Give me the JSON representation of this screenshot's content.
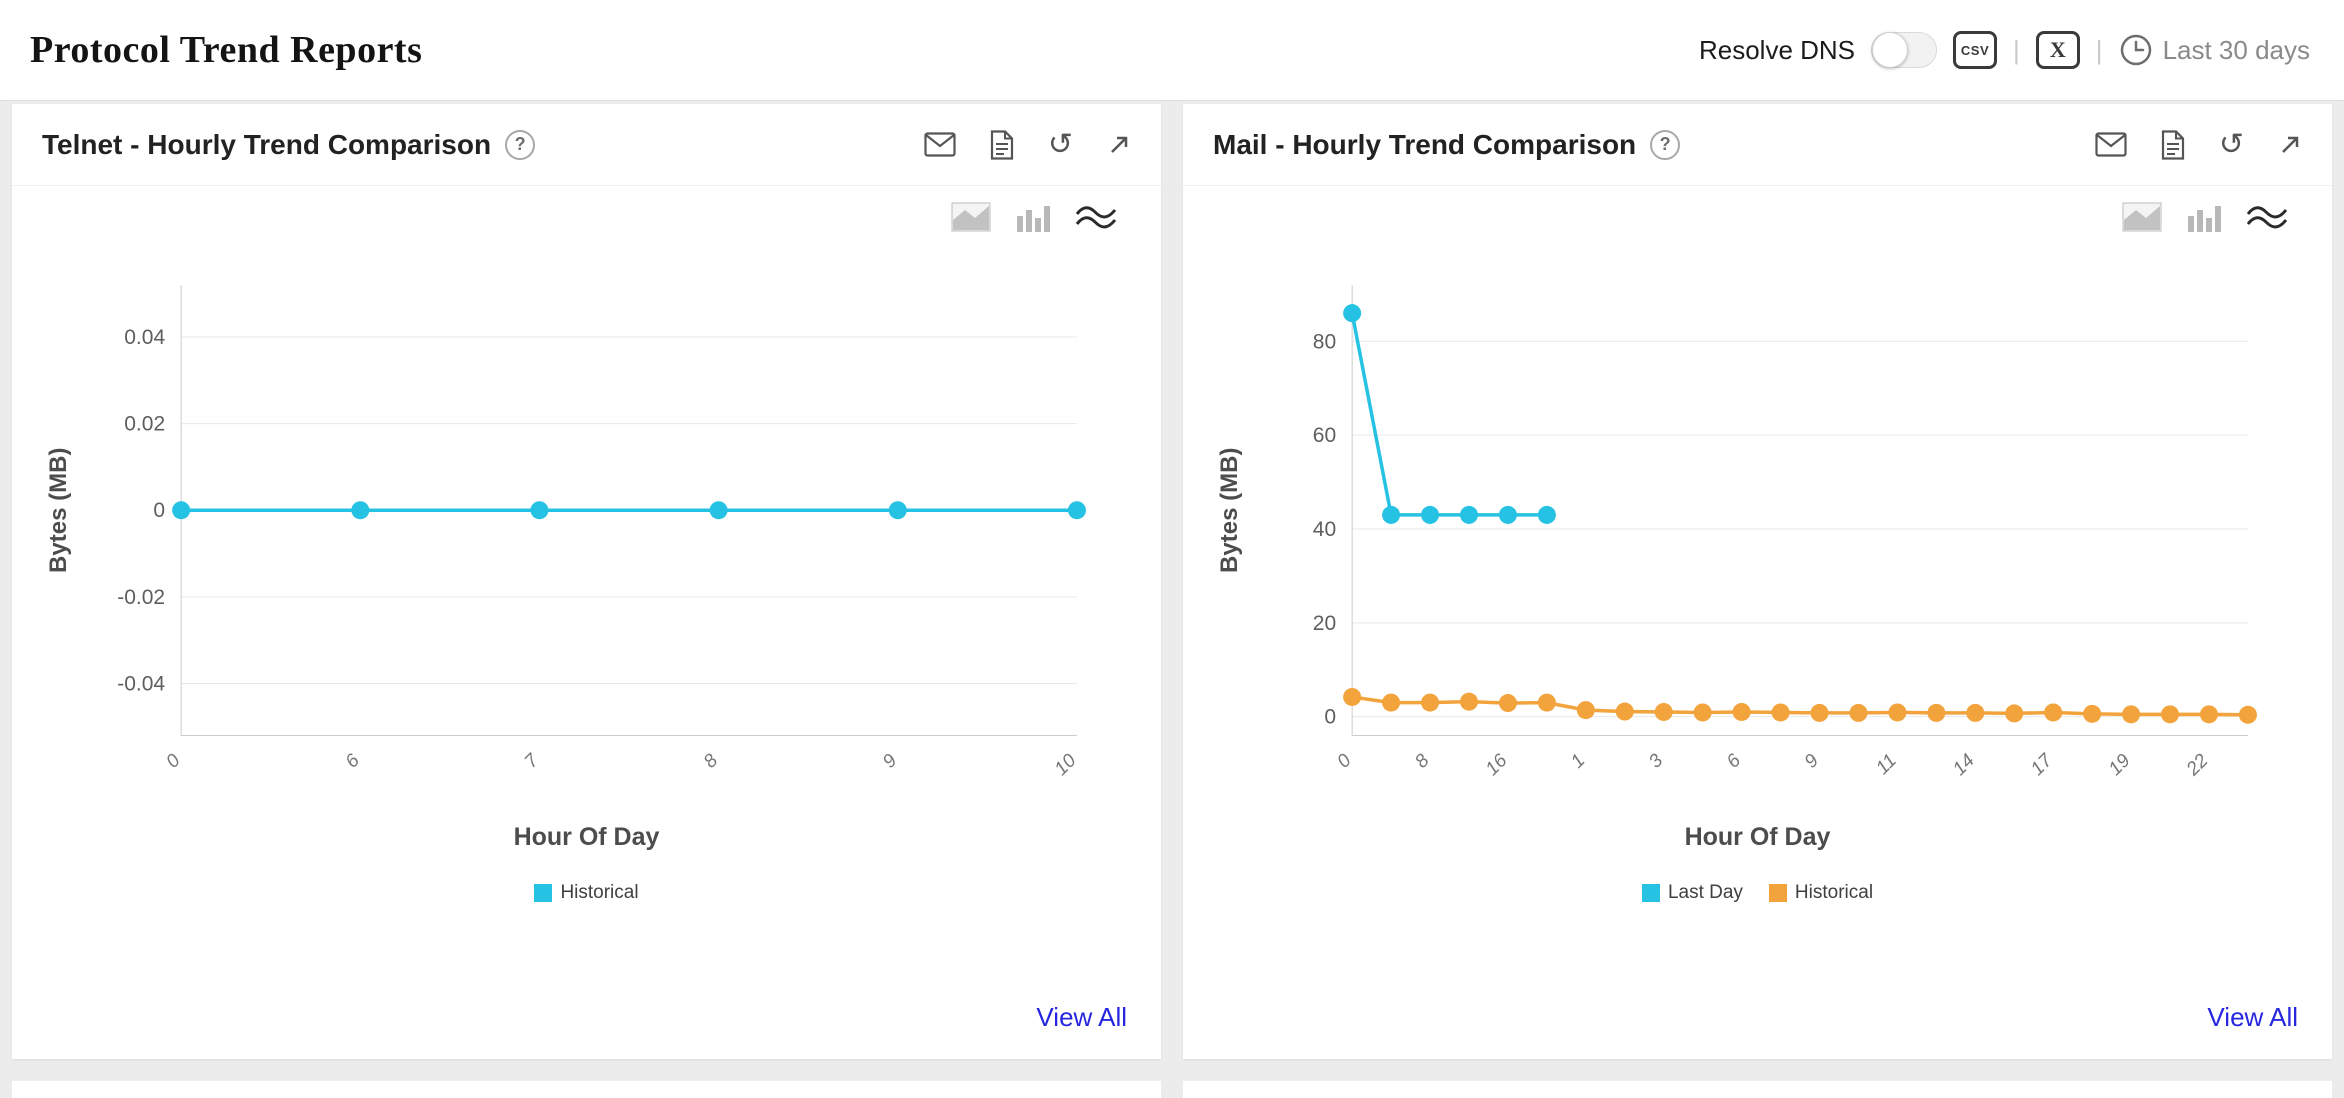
{
  "page_title": "Protocol Trend Reports",
  "toolbar": {
    "resolve_dns_label": "Resolve DNS",
    "toggle_state": "off",
    "csv_label": "CSV",
    "excel_label": "X",
    "separator": "|",
    "time_range_label": "Last 30 days"
  },
  "help_label": "?",
  "view_all_label": "View All",
  "panels": [
    {
      "title": "Telnet - Hourly Trend Comparison",
      "view_all_label": "View All",
      "chart_data": {
        "type": "line",
        "title": "Telnet - Hourly Trend Comparison",
        "xlabel": "Hour Of Day",
        "ylabel": "Bytes (MB)",
        "ylim": [
          -0.052,
          0.052
        ],
        "y_ticks": [
          -0.04,
          -0.02,
          0,
          0.02,
          0.04
        ],
        "n_points": 6,
        "x_tick_labels": [
          "0",
          "6",
          "7",
          "8",
          "9",
          "10"
        ],
        "tick_indices": [
          0,
          1,
          2,
          3,
          4,
          5
        ],
        "grid": "horizontal",
        "legend_position": "bottom",
        "series": [
          {
            "name": "Historical",
            "color": "#25c2e3",
            "x": [
              0,
              1,
              2,
              3,
              4,
              5
            ],
            "values": [
              0,
              0,
              0,
              0,
              0,
              0
            ]
          }
        ]
      }
    },
    {
      "title": "Mail - Hourly Trend Comparison",
      "view_all_label": "View All",
      "chart_data": {
        "type": "line",
        "title": "Mail - Hourly Trend Comparison",
        "xlabel": "Hour Of Day",
        "ylabel": "Bytes (MB)",
        "ylim": [
          -4,
          92
        ],
        "y_ticks": [
          0,
          20,
          40,
          60,
          80
        ],
        "n_points": 24,
        "x_tick_labels": [
          "0",
          "8",
          "16",
          "1",
          "3",
          "6",
          "9",
          "11",
          "14",
          "17",
          "19",
          "22"
        ],
        "tick_indices": [
          0,
          2,
          4,
          6,
          8,
          10,
          12,
          14,
          16,
          18,
          20,
          22
        ],
        "grid": "horizontal",
        "legend_position": "bottom",
        "series": [
          {
            "name": "Last Day",
            "color": "#25c2e3",
            "x": [
              0,
              1,
              2,
              3,
              4,
              5
            ],
            "values": [
              86,
              43,
              43,
              43,
              43,
              43
            ]
          },
          {
            "name": "Historical",
            "color": "#f2a33c",
            "x": [
              0,
              1,
              2,
              3,
              4,
              5,
              6,
              7,
              8,
              9,
              10,
              11,
              12,
              13,
              14,
              15,
              16,
              17,
              18,
              19,
              20,
              21,
              22,
              23
            ],
            "values": [
              4.2,
              3.0,
              3.0,
              3.2,
              2.9,
              3.0,
              1.4,
              1.1,
              1.0,
              0.9,
              1.0,
              0.9,
              0.8,
              0.8,
              0.9,
              0.8,
              0.8,
              0.7,
              0.9,
              0.6,
              0.5,
              0.5,
              0.5,
              0.4
            ]
          }
        ]
      }
    }
  ]
}
